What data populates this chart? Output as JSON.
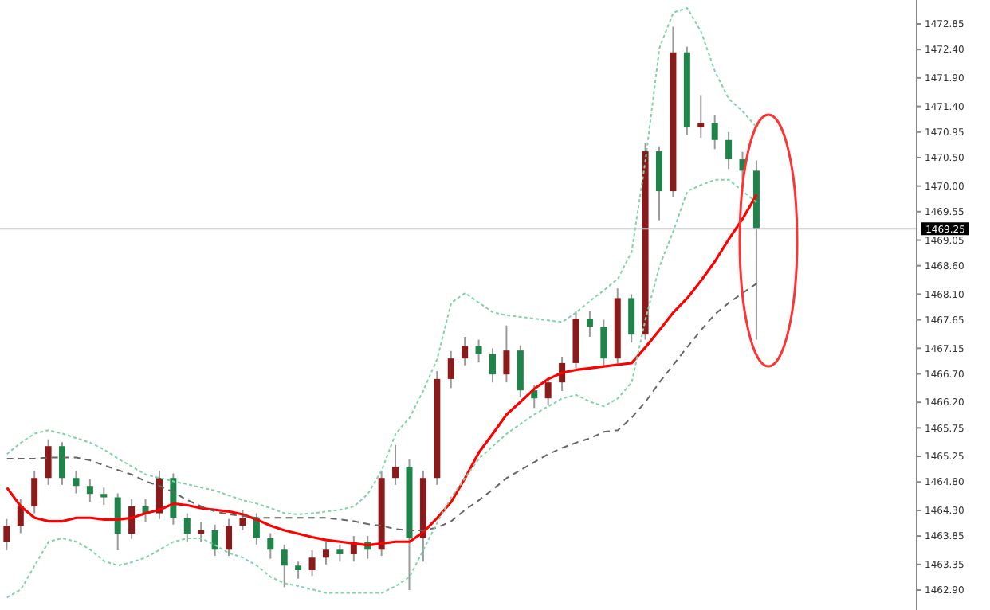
{
  "chart_data": {
    "type": "candlestick",
    "categories": [
      null,
      null,
      null,
      null,
      null,
      null,
      null,
      null,
      null,
      null,
      null,
      null,
      null,
      null,
      null,
      null,
      null,
      null,
      null,
      null,
      null,
      null,
      null,
      null,
      null,
      null,
      null,
      null,
      null,
      null,
      null,
      null,
      null,
      null,
      null,
      null,
      null,
      null,
      null,
      null,
      null,
      null,
      null,
      null,
      null,
      null,
      null,
      null,
      null,
      null,
      null,
      null,
      null,
      null,
      null
    ],
    "ohlc": [
      [
        1463.75,
        1464.15,
        1463.6,
        1464.03
      ],
      [
        1464.03,
        1464.5,
        1463.9,
        1464.37
      ],
      [
        1464.37,
        1465.0,
        1464.25,
        1464.87
      ],
      [
        1464.87,
        1465.55,
        1464.75,
        1465.43
      ],
      [
        1465.43,
        1465.5,
        1464.75,
        1464.87
      ],
      [
        1464.87,
        1465.0,
        1464.6,
        1464.73
      ],
      [
        1464.73,
        1464.85,
        1464.45,
        1464.59
      ],
      [
        1464.59,
        1464.7,
        1464.4,
        1464.53
      ],
      [
        1464.53,
        1464.6,
        1463.6,
        1463.89
      ],
      [
        1463.89,
        1464.5,
        1463.8,
        1464.37
      ],
      [
        1464.37,
        1464.5,
        1464.1,
        1464.25
      ],
      [
        1464.25,
        1465.0,
        1464.15,
        1464.87
      ],
      [
        1464.87,
        1464.95,
        1464.05,
        1464.17
      ],
      [
        1464.17,
        1464.25,
        1463.75,
        1463.89
      ],
      [
        1463.89,
        1464.1,
        1463.75,
        1463.95
      ],
      [
        1463.95,
        1464.05,
        1463.5,
        1463.61
      ],
      [
        1463.61,
        1464.15,
        1463.5,
        1464.03
      ],
      [
        1464.03,
        1464.3,
        1463.95,
        1464.17
      ],
      [
        1464.17,
        1464.25,
        1463.7,
        1463.81
      ],
      [
        1463.81,
        1463.9,
        1463.45,
        1463.61
      ],
      [
        1463.61,
        1463.7,
        1462.95,
        1463.33
      ],
      [
        1463.33,
        1463.4,
        1463.1,
        1463.25
      ],
      [
        1463.25,
        1463.6,
        1463.15,
        1463.47
      ],
      [
        1463.47,
        1463.75,
        1463.35,
        1463.61
      ],
      [
        1463.61,
        1463.7,
        1463.4,
        1463.53
      ],
      [
        1463.53,
        1463.85,
        1463.4,
        1463.75
      ],
      [
        1463.75,
        1463.85,
        1463.45,
        1463.61
      ],
      [
        1463.61,
        1465.0,
        1463.5,
        1464.87
      ],
      [
        1464.87,
        1465.45,
        1464.75,
        1465.07
      ],
      [
        1465.07,
        1465.2,
        1462.9,
        1463.81
      ],
      [
        1463.81,
        1465.0,
        1463.4,
        1464.87
      ],
      [
        1464.87,
        1466.75,
        1464.75,
        1466.61
      ],
      [
        1466.61,
        1467.1,
        1466.45,
        1466.97
      ],
      [
        1466.97,
        1467.35,
        1466.85,
        1467.19
      ],
      [
        1467.19,
        1467.3,
        1466.9,
        1467.05
      ],
      [
        1467.05,
        1467.15,
        1466.55,
        1466.69
      ],
      [
        1466.69,
        1467.55,
        1466.55,
        1467.11
      ],
      [
        1467.11,
        1467.2,
        1466.3,
        1466.41
      ],
      [
        1466.41,
        1466.5,
        1466.1,
        1466.27
      ],
      [
        1466.27,
        1466.65,
        1466.15,
        1466.55
      ],
      [
        1466.55,
        1467.0,
        1466.4,
        1466.89
      ],
      [
        1466.89,
        1467.8,
        1466.8,
        1467.67
      ],
      [
        1467.67,
        1467.8,
        1467.35,
        1467.53
      ],
      [
        1467.53,
        1467.65,
        1466.85,
        1466.97
      ],
      [
        1466.97,
        1468.2,
        1466.85,
        1468.03
      ],
      [
        1468.03,
        1468.1,
        1467.25,
        1467.39
      ],
      [
        1467.39,
        1470.75,
        1467.3,
        1470.61
      ],
      [
        1470.61,
        1470.7,
        1469.4,
        1469.91
      ],
      [
        1469.91,
        1472.8,
        1469.8,
        1472.35
      ],
      [
        1472.35,
        1472.45,
        1470.9,
        1471.03
      ],
      [
        1471.03,
        1471.6,
        1470.85,
        1471.11
      ],
      [
        1471.11,
        1471.25,
        1470.65,
        1470.81
      ],
      [
        1470.81,
        1470.95,
        1470.3,
        1470.47
      ],
      [
        1470.47,
        1470.6,
        1470.1,
        1470.27
      ],
      [
        1470.27,
        1470.45,
        1467.3,
        1469.25
      ]
    ],
    "colors": [
      "#8b1a1a",
      "#8b1a1a",
      "#8b1a1a",
      "#8b1a1a",
      "#1e8449",
      "#1e8449",
      "#1e8449",
      "#1e8449",
      "#1e8449",
      "#8b1a1a",
      "#1e8449",
      "#8b1a1a",
      "#1e8449",
      "#1e8449",
      "#8b1a1a",
      "#1e8449",
      "#8b1a1a",
      "#8b1a1a",
      "#1e8449",
      "#1e8449",
      "#1e8449",
      "#1e8449",
      "#8b1a1a",
      "#8b1a1a",
      "#1e8449",
      "#8b1a1a",
      "#1e8449",
      "#8b1a1a",
      "#8b1a1a",
      "#1e8449",
      "#8b1a1a",
      "#8b1a1a",
      "#8b1a1a",
      "#8b1a1a",
      "#1e8449",
      "#1e8449",
      "#8b1a1a",
      "#1e8449",
      "#1e8449",
      "#8b1a1a",
      "#8b1a1a",
      "#8b1a1a",
      "#1e8449",
      "#1e8449",
      "#8b1a1a",
      "#1e8449",
      "#8b1a1a",
      "#1e8449",
      "#8b1a1a",
      "#1e8449",
      "#8b1a1a",
      "#1e8449",
      "#1e8449",
      "#1e8449",
      "#1e8449"
    ],
    "series": [
      {
        "type": "line",
        "color": "#ff0000",
        "line_style": "solid",
        "values": [
          1464.7,
          1464.37,
          1464.17,
          1464.11,
          1464.11,
          1464.17,
          1464.17,
          1464.14,
          1464.14,
          1464.17,
          1464.25,
          1464.31,
          1464.42,
          1464.39,
          1464.34,
          1464.31,
          1464.28,
          1464.23,
          1464.14,
          1464.03,
          1463.95,
          1463.89,
          1463.83,
          1463.78,
          1463.75,
          1463.72,
          1463.69,
          1463.72,
          1463.75,
          1463.75,
          1463.92,
          1464.17,
          1464.45,
          1464.87,
          1465.32,
          1465.65,
          1465.99,
          1466.21,
          1466.44,
          1466.61,
          1466.72,
          1466.77,
          1466.8,
          1466.83,
          1466.86,
          1466.89,
          1467.17,
          1467.47,
          1467.78,
          1468.03,
          1468.34,
          1468.68,
          1469.07,
          1469.43,
          1469.85
        ]
      },
      {
        "type": "line",
        "color": "#666666",
        "line_style": "dashed",
        "values": [
          1465.21,
          1465.21,
          1465.21,
          1465.23,
          1465.23,
          1465.23,
          1465.18,
          1465.09,
          1465.01,
          1464.93,
          1464.81,
          1464.73,
          1464.62,
          1464.48,
          1464.37,
          1464.28,
          1464.23,
          1464.2,
          1464.17,
          1464.17,
          1464.17,
          1464.17,
          1464.17,
          1464.17,
          1464.14,
          1464.11,
          1464.06,
          1464.03,
          1463.97,
          1463.95,
          1463.95,
          1464.0,
          1464.11,
          1464.31,
          1464.48,
          1464.67,
          1464.87,
          1465.01,
          1465.15,
          1465.29,
          1465.4,
          1465.49,
          1465.57,
          1465.68,
          1465.71,
          1465.93,
          1466.21,
          1466.55,
          1466.86,
          1467.17,
          1467.47,
          1467.75,
          1467.95,
          1468.12,
          1468.29
        ]
      },
      {
        "type": "line",
        "color": "#7fd3a8",
        "line_style": "dotted",
        "values": [
          1465.29,
          1465.49,
          1465.65,
          1465.71,
          1465.65,
          1465.57,
          1465.49,
          1465.37,
          1465.21,
          1465.07,
          1464.93,
          1464.87,
          1464.81,
          1464.76,
          1464.7,
          1464.65,
          1464.56,
          1464.48,
          1464.42,
          1464.34,
          1464.25,
          1464.23,
          1464.25,
          1464.28,
          1464.31,
          1464.37,
          1464.59,
          1465.01,
          1465.65,
          1465.93,
          1466.41,
          1466.97,
          1467.95,
          1468.12,
          1467.95,
          1467.78,
          1467.73,
          1467.7,
          1467.67,
          1467.64,
          1467.61,
          1467.78,
          1467.98,
          1468.17,
          1468.37,
          1468.85,
          1470.47,
          1472.43,
          1473.05,
          1473.13,
          1472.71,
          1472.01,
          1471.53,
          1471.31,
          1471.03
        ]
      },
      {
        "type": "line",
        "color": "#7fd3a8",
        "line_style": "dotted",
        "values": [
          1462.77,
          1462.91,
          1463.33,
          1463.75,
          1463.81,
          1463.75,
          1463.61,
          1463.41,
          1463.33,
          1463.39,
          1463.47,
          1463.61,
          1463.75,
          1463.81,
          1463.81,
          1463.69,
          1463.55,
          1463.47,
          1463.33,
          1463.13,
          1463.02,
          1462.97,
          1462.91,
          1462.85,
          1462.85,
          1462.85,
          1462.85,
          1462.85,
          1462.97,
          1463.13,
          1463.61,
          1464.09,
          1464.53,
          1464.87,
          1465.21,
          1465.43,
          1465.65,
          1465.82,
          1465.99,
          1466.13,
          1466.27,
          1466.33,
          1466.21,
          1466.13,
          1466.27,
          1466.55,
          1467.67,
          1468.59,
          1469.21,
          1469.91,
          1470.02,
          1470.11,
          1470.11,
          1469.91,
          1469.71
        ]
      }
    ],
    "ylim": [
      1462.55,
      1473.27
    ],
    "yticks": [
      {
        "value": 1472.85,
        "label": "1472.85"
      },
      {
        "value": 1472.4,
        "label": "1472.40"
      },
      {
        "value": 1471.9,
        "label": "1471.90"
      },
      {
        "value": 1471.4,
        "label": "1471.40"
      },
      {
        "value": 1470.95,
        "label": "1470.95"
      },
      {
        "value": 1470.5,
        "label": "1470.50"
      },
      {
        "value": 1470.0,
        "label": "1470.00"
      },
      {
        "value": 1469.55,
        "label": "1469.55"
      },
      {
        "value": 1469.05,
        "label": "1469.05"
      },
      {
        "value": 1468.6,
        "label": "1468.60"
      },
      {
        "value": 1468.1,
        "label": "1468.10"
      },
      {
        "value": 1467.65,
        "label": "1467.65"
      },
      {
        "value": 1467.15,
        "label": "1467.15"
      },
      {
        "value": 1466.7,
        "label": "1466.70"
      },
      {
        "value": 1466.2,
        "label": "1466.20"
      },
      {
        "value": 1465.75,
        "label": "1465.75"
      },
      {
        "value": 1465.25,
        "label": "1465.25"
      },
      {
        "value": 1464.8,
        "label": "1464.80"
      },
      {
        "value": 1464.3,
        "label": "1464.30"
      },
      {
        "value": 1463.85,
        "label": "1463.85"
      },
      {
        "value": 1463.35,
        "label": "1463.35"
      },
      {
        "value": 1462.9,
        "label": "1462.90"
      }
    ],
    "tick_labels": "y",
    "ref_lines": [
      {
        "axis": "y",
        "value": 1469.25,
        "label": "1469.25",
        "color": "#c8c8c8"
      }
    ]
  }
}
